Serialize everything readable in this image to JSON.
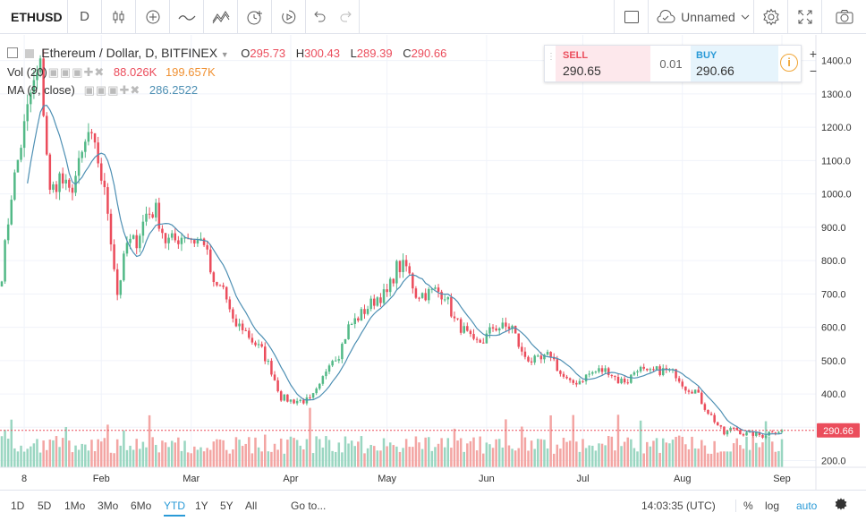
{
  "toolbar": {
    "symbol": "ETHUSD",
    "interval": "D",
    "layout_name": "Unnamed",
    "icons": [
      "candles-icon",
      "plus-circle-icon",
      "indicators-icon",
      "templates-icon",
      "alert-clock-icon",
      "replay-icon",
      "undo-icon",
      "redo-icon",
      "fullscreen-box-icon",
      "cloud-icon",
      "chevron-down-icon",
      "gear-icon",
      "expand-icon",
      "camera-icon"
    ]
  },
  "legend": {
    "title": "Ethereum / Dollar, D, BITFINEX",
    "o_label": "O",
    "o_value": "295.73",
    "h_label": "H",
    "h_value": "300.43",
    "l_label": "L",
    "l_value": "289.39",
    "c_label": "C",
    "c_value": "290.66",
    "vol_label": "Vol (20)",
    "vol_value1": "88.026K",
    "vol_value2": "199.657K",
    "ma_label": "MA (9, close)",
    "ma_value": "286.2522"
  },
  "trade": {
    "sell_label": "SELL",
    "sell_price": "290.65",
    "spread": "0.01",
    "buy_label": "BUY",
    "buy_price": "290.66",
    "plus": "+",
    "minus": "−"
  },
  "bottombar": {
    "ranges": [
      "1D",
      "5D",
      "1Mo",
      "3Mo",
      "6Mo",
      "YTD",
      "1Y",
      "5Y",
      "All"
    ],
    "active_range": "YTD",
    "goto": "Go to...",
    "time": "14:03:35 (UTC)",
    "percent": "%",
    "log": "log",
    "auto": "auto"
  },
  "colors": {
    "up": "#53b987",
    "down": "#eb4d5c",
    "up_vol": "#9ad6c1",
    "down_vol": "#f3a5a3",
    "ma": "#4d8fb3",
    "current": "#eb4d5c"
  },
  "chart_data": {
    "type": "candlestick",
    "x_start": "2018-01-01",
    "x_ticks": [
      "8",
      "Feb",
      "Mar",
      "Apr",
      "May",
      "Jun",
      "Jul",
      "Aug",
      "Sep"
    ],
    "y_ticks": [
      200,
      300,
      400,
      500,
      600,
      700,
      800,
      900,
      1000,
      1100,
      1200,
      1300,
      1400
    ],
    "ylim": [
      180,
      1450
    ],
    "last_price": "290.66",
    "series": [
      {
        "name": "Ethereum / Dollar",
        "type": "candlestick",
        "close_by_date": [
          [
            "2018-01-01",
            760
          ],
          [
            "2018-01-04",
            1000
          ],
          [
            "2018-01-07",
            1150
          ],
          [
            "2018-01-10",
            1300
          ],
          [
            "2018-01-13",
            1380
          ],
          [
            "2018-01-16",
            1000
          ],
          [
            "2018-01-19",
            1050
          ],
          [
            "2018-01-22",
            1000
          ],
          [
            "2018-01-25",
            1080
          ],
          [
            "2018-01-28",
            1180
          ],
          [
            "2018-01-31",
            1100
          ],
          [
            "2018-02-03",
            950
          ],
          [
            "2018-02-06",
            700
          ],
          [
            "2018-02-09",
            850
          ],
          [
            "2018-02-12",
            860
          ],
          [
            "2018-02-15",
            940
          ],
          [
            "2018-02-18",
            950
          ],
          [
            "2018-02-21",
            860
          ],
          [
            "2018-02-24",
            860
          ],
          [
            "2018-02-27",
            880
          ],
          [
            "2018-03-02",
            860
          ],
          [
            "2018-03-05",
            860
          ],
          [
            "2018-03-08",
            720
          ],
          [
            "2018-03-11",
            720
          ],
          [
            "2018-03-14",
            610
          ],
          [
            "2018-03-17",
            600
          ],
          [
            "2018-03-20",
            560
          ],
          [
            "2018-03-23",
            530
          ],
          [
            "2018-03-26",
            470
          ],
          [
            "2018-03-29",
            390
          ],
          [
            "2018-04-01",
            380
          ],
          [
            "2018-04-04",
            380
          ],
          [
            "2018-04-07",
            380
          ],
          [
            "2018-04-10",
            420
          ],
          [
            "2018-04-13",
            500
          ],
          [
            "2018-04-16",
            520
          ],
          [
            "2018-04-19",
            600
          ],
          [
            "2018-04-22",
            630
          ],
          [
            "2018-04-25",
            660
          ],
          [
            "2018-04-28",
            690
          ],
          [
            "2018-05-01",
            700
          ],
          [
            "2018-05-04",
            780
          ],
          [
            "2018-05-07",
            780
          ],
          [
            "2018-05-10",
            700
          ],
          [
            "2018-05-13",
            700
          ],
          [
            "2018-05-16",
            710
          ],
          [
            "2018-05-19",
            700
          ],
          [
            "2018-05-22",
            620
          ],
          [
            "2018-05-25",
            590
          ],
          [
            "2018-05-28",
            550
          ],
          [
            "2018-05-31",
            560
          ],
          [
            "2018-06-03",
            600
          ],
          [
            "2018-06-06",
            600
          ],
          [
            "2018-06-09",
            600
          ],
          [
            "2018-06-12",
            520
          ],
          [
            "2018-06-15",
            500
          ],
          [
            "2018-06-18",
            500
          ],
          [
            "2018-06-21",
            520
          ],
          [
            "2018-06-24",
            460
          ],
          [
            "2018-06-27",
            430
          ],
          [
            "2018-06-30",
            440
          ],
          [
            "2018-07-03",
            460
          ],
          [
            "2018-07-06",
            470
          ],
          [
            "2018-07-09",
            470
          ],
          [
            "2018-07-12",
            440
          ],
          [
            "2018-07-15",
            440
          ],
          [
            "2018-07-18",
            480
          ],
          [
            "2018-07-21",
            460
          ],
          [
            "2018-07-24",
            470
          ],
          [
            "2018-07-27",
            470
          ],
          [
            "2018-07-30",
            460
          ],
          [
            "2018-08-02",
            420
          ],
          [
            "2018-08-05",
            410
          ],
          [
            "2018-08-08",
            360
          ],
          [
            "2018-08-11",
            320
          ],
          [
            "2018-08-14",
            280
          ],
          [
            "2018-08-17",
            300
          ],
          [
            "2018-08-20",
            280
          ],
          [
            "2018-08-23",
            280
          ],
          [
            "2018-08-26",
            275
          ],
          [
            "2018-08-29",
            290
          ],
          [
            "2018-09-01",
            290
          ]
        ]
      },
      {
        "name": "MA (9, close)",
        "type": "line"
      },
      {
        "name": "Vol (20)",
        "type": "bar"
      }
    ]
  }
}
